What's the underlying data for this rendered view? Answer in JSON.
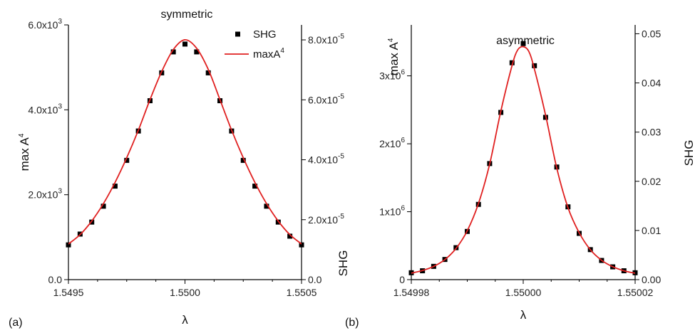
{
  "chart_data": [
    {
      "type": "scatter",
      "panel_label": "(a)",
      "title": "symmetric",
      "xlabel": "λ",
      "ylabel_left": "max A",
      "ylabel_left_sup": "4",
      "ylabel_right": "SHG",
      "xlim": [
        1.5495,
        1.5505
      ],
      "ylim_left": [
        0,
        6000
      ],
      "ylim_right": [
        0,
        8.5e-05
      ],
      "x_ticks": [
        {
          "value": 1.5495,
          "label": "1.5495"
        },
        {
          "value": 1.55,
          "label": "1.5500"
        },
        {
          "value": 1.5505,
          "label": "1.5505"
        }
      ],
      "y_left_ticks": [
        {
          "value": 0,
          "label": "0.0",
          "sup": ""
        },
        {
          "value": 2000,
          "label": "2.0x10",
          "sup": "3"
        },
        {
          "value": 4000,
          "label": "4.0x10",
          "sup": "3"
        },
        {
          "value": 6000,
          "label": "6.0x10",
          "sup": "3"
        }
      ],
      "y_right_ticks": [
        {
          "value": 0,
          "label": "0.0",
          "sup": ""
        },
        {
          "value": 2e-05,
          "label": "2.0x10",
          "sup": "-5"
        },
        {
          "value": 4e-05,
          "label": "4.0x10",
          "sup": "-5"
        },
        {
          "value": 6e-05,
          "label": "6.0x10",
          "sup": "-5"
        },
        {
          "value": 8e-05,
          "label": "8.0x10",
          "sup": "-5"
        }
      ],
      "legend": [
        {
          "label": "SHG",
          "sup": "",
          "kind": "marker"
        },
        {
          "label": "maxA",
          "sup": "4",
          "kind": "line"
        }
      ],
      "legend_position": "top-right",
      "series": [
        {
          "name": "SHG",
          "axis": "right",
          "kind": "marker",
          "color": "#000000",
          "x": [
            1.5495,
            1.54955,
            1.5496,
            1.54965,
            1.5497,
            1.54975,
            1.5498,
            1.54985,
            1.5499,
            1.54995,
            1.55,
            1.55005,
            1.5501,
            1.55015,
            1.5502,
            1.55025,
            1.5503,
            1.55035,
            1.5504,
            1.55045,
            1.5505
          ],
          "values": [
            1.16e-05,
            1.52e-05,
            1.92e-05,
            2.45e-05,
            3.12e-05,
            3.98e-05,
            4.96e-05,
            5.97e-05,
            6.9e-05,
            7.6e-05,
            7.86e-05,
            7.6e-05,
            6.9e-05,
            5.97e-05,
            4.96e-05,
            3.98e-05,
            3.12e-05,
            2.45e-05,
            1.92e-05,
            1.45e-05,
            1.16e-05
          ]
        },
        {
          "name": "maxA4",
          "axis": "left",
          "kind": "line",
          "color": "#e02020",
          "x": [
            1.5495,
            1.54955,
            1.5496,
            1.54965,
            1.5497,
            1.54975,
            1.5498,
            1.54985,
            1.5499,
            1.54995,
            1.55,
            1.55005,
            1.5501,
            1.55015,
            1.5502,
            1.55025,
            1.5503,
            1.55035,
            1.5504,
            1.55045,
            1.5505
          ],
          "values": [
            840,
            1060,
            1380,
            1790,
            2290,
            2870,
            3520,
            4240,
            4900,
            5420,
            5650,
            5450,
            4950,
            4240,
            3520,
            2870,
            2290,
            1790,
            1380,
            1060,
            840
          ]
        }
      ]
    },
    {
      "type": "scatter",
      "panel_label": "(b)",
      "title": "asymmetric",
      "xlabel": "λ",
      "ylabel_left": "max A",
      "ylabel_left_sup": "4",
      "ylabel_right": "SHG",
      "xlim": [
        1.54998,
        1.55002
      ],
      "ylim_left": [
        0,
        3750000
      ],
      "ylim_right": [
        0,
        0.0518
      ],
      "x_ticks": [
        {
          "value": 1.54998,
          "label": "1.54998"
        },
        {
          "value": 1.55,
          "label": "1.55000"
        },
        {
          "value": 1.55002,
          "label": "1.55002"
        }
      ],
      "y_left_ticks": [
        {
          "value": 0,
          "label": "0",
          "sup": ""
        },
        {
          "value": 1000000,
          "label": "1x10",
          "sup": "6"
        },
        {
          "value": 2000000,
          "label": "2x10",
          "sup": "6"
        },
        {
          "value": 3000000,
          "label": "3x10",
          "sup": "6"
        }
      ],
      "y_right_ticks": [
        {
          "value": 0,
          "label": "0.00",
          "sup": ""
        },
        {
          "value": 0.01,
          "label": "0.01",
          "sup": ""
        },
        {
          "value": 0.02,
          "label": "0.02",
          "sup": ""
        },
        {
          "value": 0.03,
          "label": "0.03",
          "sup": ""
        },
        {
          "value": 0.04,
          "label": "0.04",
          "sup": ""
        },
        {
          "value": 0.05,
          "label": "0.05",
          "sup": ""
        }
      ],
      "legend": [],
      "series": [
        {
          "name": "SHG",
          "axis": "right",
          "kind": "marker",
          "color": "#000000",
          "x": [
            1.54998,
            1.549982,
            1.549984,
            1.549986,
            1.549988,
            1.54999,
            1.549992,
            1.549994,
            1.549996,
            1.549998,
            1.55,
            1.550002,
            1.550004,
            1.550006,
            1.550008,
            1.55001,
            1.550012,
            1.550014,
            1.550016,
            1.550018,
            1.55002
          ],
          "values": [
            0.0014,
            0.0018,
            0.0027,
            0.0041,
            0.0065,
            0.0098,
            0.0153,
            0.0236,
            0.034,
            0.0441,
            0.048,
            0.0435,
            0.033,
            0.0229,
            0.0148,
            0.0094,
            0.0061,
            0.0039,
            0.0026,
            0.0018,
            0.0014
          ]
        },
        {
          "name": "maxA4",
          "axis": "left",
          "kind": "line",
          "color": "#e02020",
          "x": [
            1.54998,
            1.549982,
            1.549984,
            1.549986,
            1.549988,
            1.54999,
            1.549992,
            1.549994,
            1.549996,
            1.549998,
            1.549999,
            1.55,
            1.550001,
            1.550002,
            1.550004,
            1.550006,
            1.550008,
            1.55001,
            1.550012,
            1.550014,
            1.550016,
            1.550018,
            1.55002
          ],
          "values": [
            95000,
            135000,
            195000,
            295000,
            460000,
            720000,
            1120000,
            1700000,
            2480000,
            3150000,
            3380000,
            3430000,
            3360000,
            3100000,
            2420000,
            1640000,
            1060000,
            690000,
            440000,
            285000,
            190000,
            130000,
            95000
          ]
        }
      ]
    }
  ]
}
